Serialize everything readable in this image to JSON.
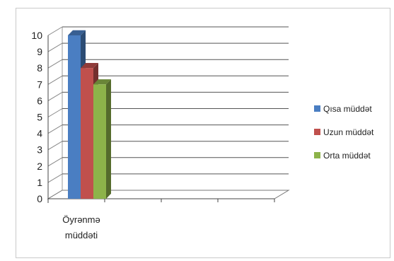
{
  "chart_data": {
    "type": "bar",
    "style": "3d-clustered-column",
    "categories": [
      "Öyrənmə müddəti"
    ],
    "category_lines": [
      "Öyrənmə",
      "müddəti"
    ],
    "series": [
      {
        "name": "Qısa müddət",
        "values": [
          10
        ],
        "color": "#4a7ec2"
      },
      {
        "name": "Uzun müddət",
        "values": [
          8
        ],
        "color": "#c0504d"
      },
      {
        "name": "Orta müddət",
        "values": [
          7
        ],
        "color": "#8db34a"
      }
    ],
    "y_ticks": [
      "0",
      "1",
      "2",
      "3",
      "4",
      "5",
      "6",
      "7",
      "8",
      "9",
      "10"
    ],
    "ylim": [
      0,
      10
    ],
    "title": "",
    "xlabel": "",
    "ylabel": "",
    "grid": true,
    "legend_position": "right"
  }
}
